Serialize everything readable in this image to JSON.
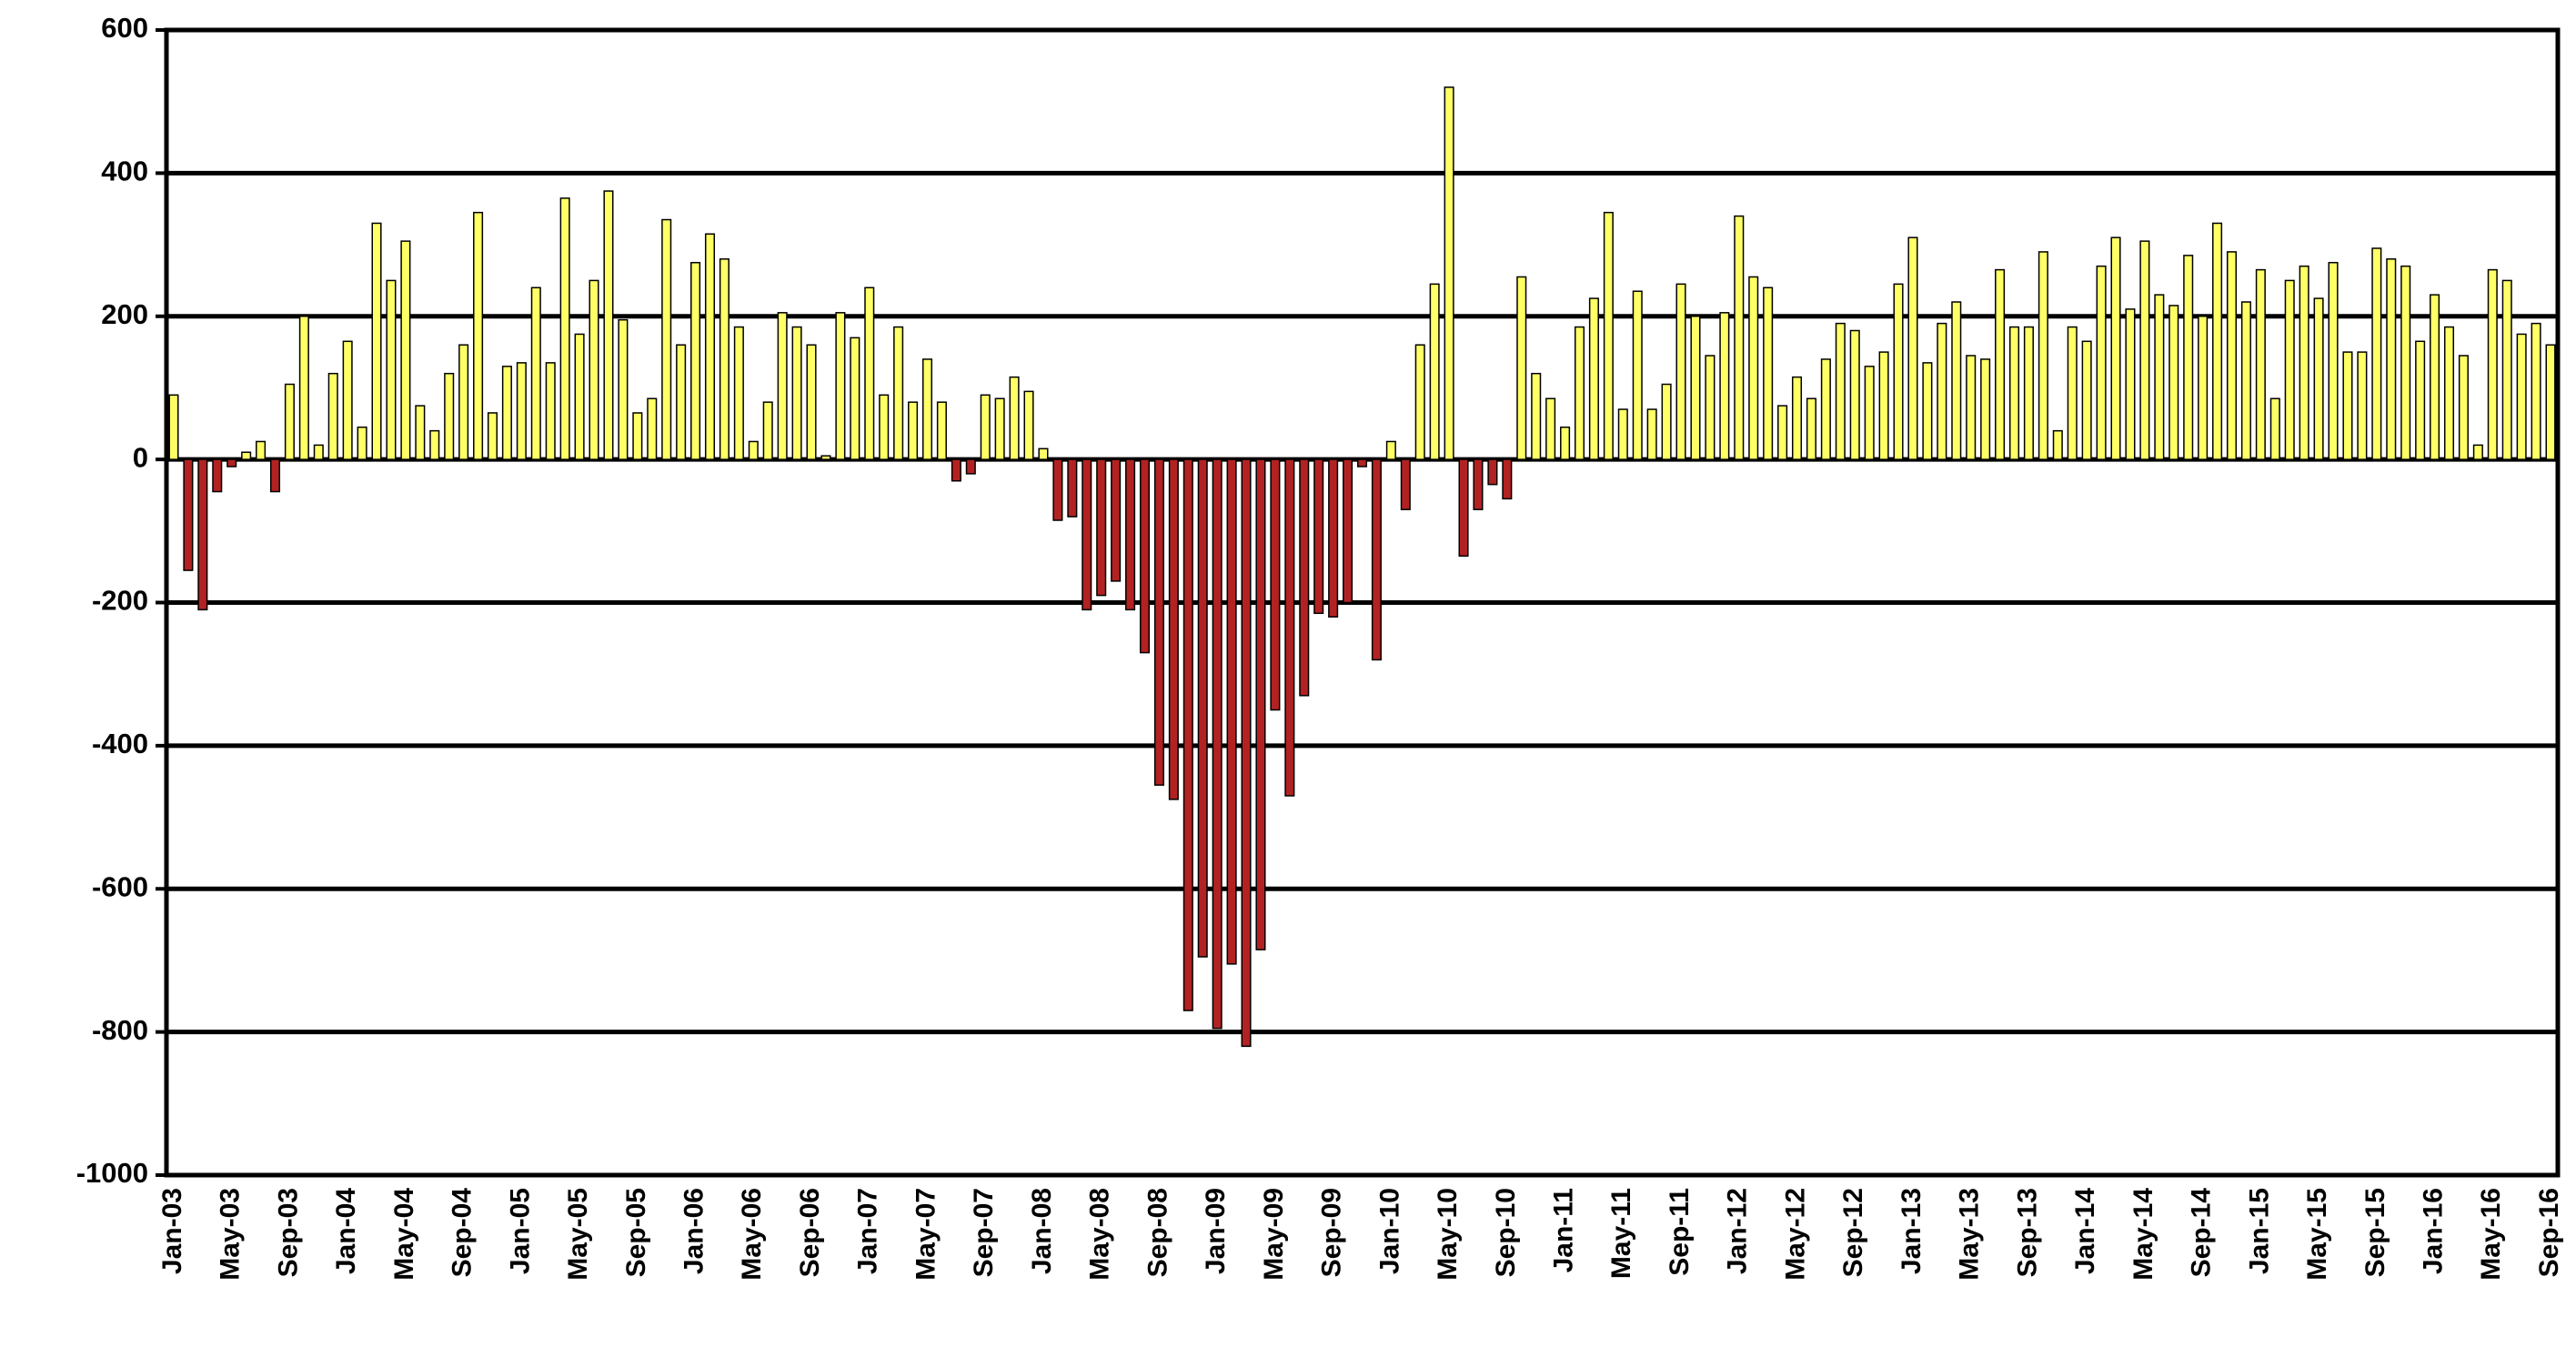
{
  "chart_data": {
    "type": "bar",
    "categories": [
      "Jan-03",
      null,
      null,
      null,
      "May-03",
      null,
      null,
      null,
      "Sep-03",
      null,
      null,
      null,
      "Jan-04",
      null,
      null,
      null,
      "May-04",
      null,
      null,
      null,
      "Sep-04",
      null,
      null,
      null,
      "Jan-05",
      null,
      null,
      null,
      "May-05",
      null,
      null,
      null,
      "Sep-05",
      null,
      null,
      null,
      "Jan-06",
      null,
      null,
      null,
      "May-06",
      null,
      null,
      null,
      "Sep-06",
      null,
      null,
      null,
      "Jan-07",
      null,
      null,
      null,
      "May-07",
      null,
      null,
      null,
      "Sep-07",
      null,
      null,
      null,
      "Jan-08",
      null,
      null,
      null,
      "May-08",
      null,
      null,
      null,
      "Sep-08",
      null,
      null,
      null,
      "Jan-09",
      null,
      null,
      null,
      "May-09",
      null,
      null,
      null,
      "Sep-09",
      null,
      null,
      null,
      "Jan-10",
      null,
      null,
      null,
      "May-10",
      null,
      null,
      null,
      "Sep-10",
      null,
      null,
      null,
      "Jan-11",
      null,
      null,
      null,
      "May-11",
      null,
      null,
      null,
      "Sep-11",
      null,
      null,
      null,
      "Jan-12",
      null,
      null,
      null,
      "May-12",
      null,
      null,
      null,
      "Sep-12",
      null,
      null,
      null,
      "Jan-13",
      null,
      null,
      null,
      "May-13",
      null,
      null,
      null,
      "Sep-13",
      null,
      null,
      null,
      "Jan-14",
      null,
      null,
      null,
      "May-14",
      null,
      null,
      null,
      "Sep-14",
      null,
      null,
      null,
      "Jan-15",
      null,
      null,
      null,
      "May-15",
      null,
      null,
      null,
      "Sep-15",
      null,
      null,
      null,
      "Jan-16",
      null,
      null,
      null,
      "May-16",
      null,
      null,
      null,
      "Sep-16"
    ],
    "values": [
      90,
      -155,
      -210,
      -45,
      -10,
      10,
      25,
      -45,
      105,
      200,
      20,
      120,
      165,
      45,
      330,
      250,
      305,
      75,
      40,
      120,
      160,
      345,
      65,
      130,
      135,
      240,
      135,
      365,
      175,
      250,
      375,
      195,
      65,
      85,
      335,
      160,
      275,
      315,
      280,
      185,
      25,
      80,
      205,
      185,
      160,
      5,
      205,
      170,
      240,
      90,
      185,
      80,
      140,
      80,
      -30,
      -20,
      90,
      85,
      115,
      95,
      15,
      -85,
      -80,
      -210,
      -190,
      -170,
      -210,
      -270,
      -455,
      -475,
      -770,
      -695,
      -795,
      -705,
      -820,
      -685,
      -350,
      -470,
      -330,
      -215,
      -220,
      -200,
      -10,
      -280,
      25,
      -70,
      160,
      245,
      520,
      -135,
      -70,
      -35,
      -55,
      255,
      120,
      85,
      45,
      185,
      225,
      345,
      70,
      235,
      70,
      105,
      245,
      200,
      145,
      205,
      340,
      255,
      240,
      75,
      115,
      85,
      140,
      190,
      180,
      130,
      150,
      245,
      310,
      135,
      190,
      220,
      145,
      140,
      265,
      185,
      185,
      290,
      40,
      185,
      165,
      270,
      310,
      210,
      305,
      230,
      215,
      285,
      200,
      330,
      290,
      220,
      265,
      85,
      250,
      270,
      225,
      275,
      150,
      150,
      295,
      280,
      270,
      165,
      230,
      185,
      145,
      20,
      265,
      250,
      175,
      190,
      160
    ],
    "positive_color": "#ffff66",
    "negative_color": "#b22222",
    "ylim": [
      -1000,
      600
    ],
    "yticks": [
      -1000,
      -800,
      -600,
      -400,
      -200,
      0,
      200,
      400,
      600
    ],
    "grid": true
  }
}
